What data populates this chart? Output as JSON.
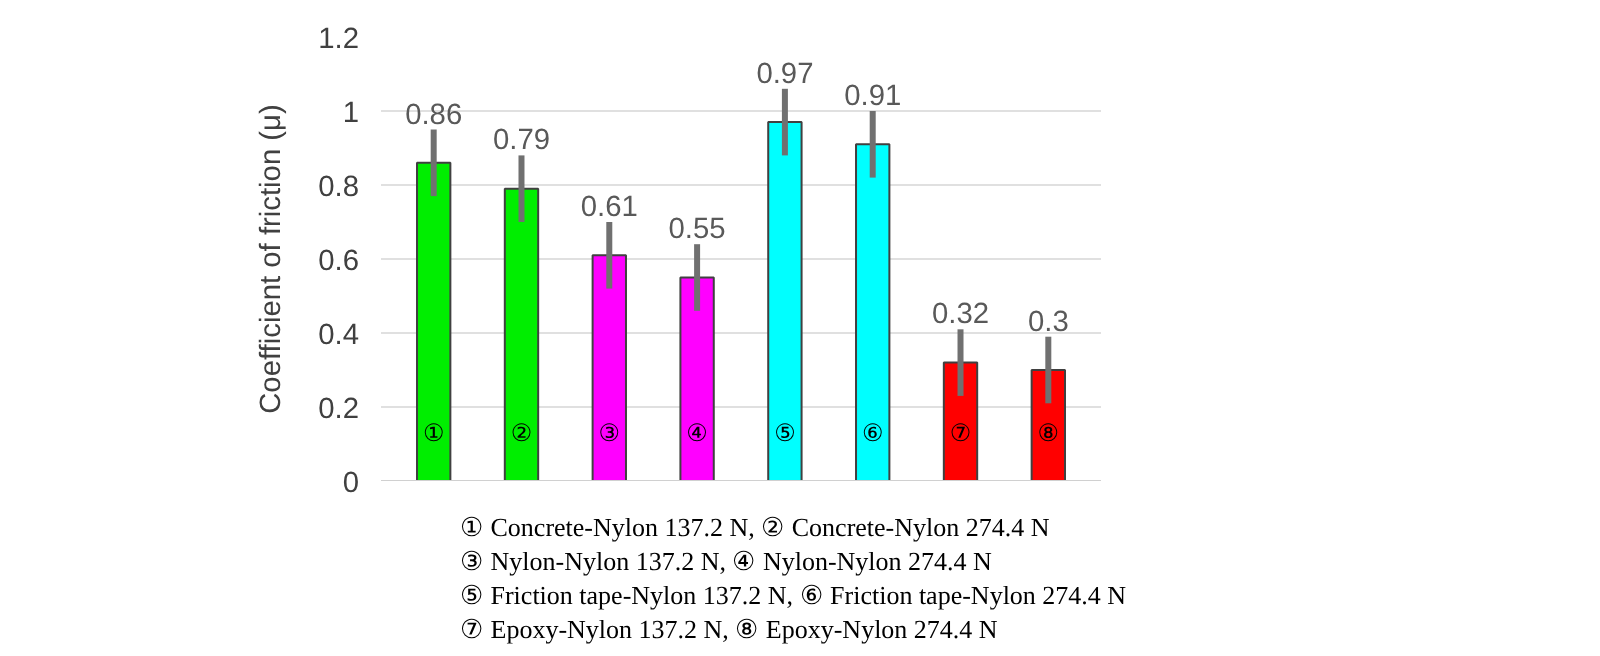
{
  "chart_data": {
    "type": "bar",
    "ylabel": "Coefficient of friction (μ)",
    "categories": [
      "①",
      "②",
      "③",
      "④",
      "⑤",
      "⑥",
      "⑦",
      "⑧"
    ],
    "values": [
      0.86,
      0.79,
      0.61,
      0.55,
      0.97,
      0.91,
      0.32,
      0.3
    ],
    "colors": [
      "#00ee00",
      "#00ee00",
      "#ff00ff",
      "#ff00ff",
      "#00ffff",
      "#00ffff",
      "#ff0000",
      "#ff0000"
    ],
    "errors": [
      0.09,
      0.09,
      0.09,
      0.09,
      0.09,
      0.09,
      0.09,
      0.09
    ],
    "data_labels": true,
    "ylim": [
      0,
      1.2
    ],
    "yticks": [
      0,
      0.2,
      0.4,
      0.6,
      0.8,
      1,
      1.2
    ],
    "grid": "y",
    "annotations": [
      "① Concrete-Nylon 137.2 N, ② Concrete-Nylon 274.4 N",
      "③ Nylon-Nylon 137.2 N, ④ Nylon-Nylon 274.4 N",
      "⑤ Friction tape-Nylon 137.2 N, ⑥ Friction tape-Nylon 274.4 N",
      "⑦ Epoxy-Nylon 137.2 N, ⑧ Epoxy-Nylon 274.4 N"
    ]
  }
}
